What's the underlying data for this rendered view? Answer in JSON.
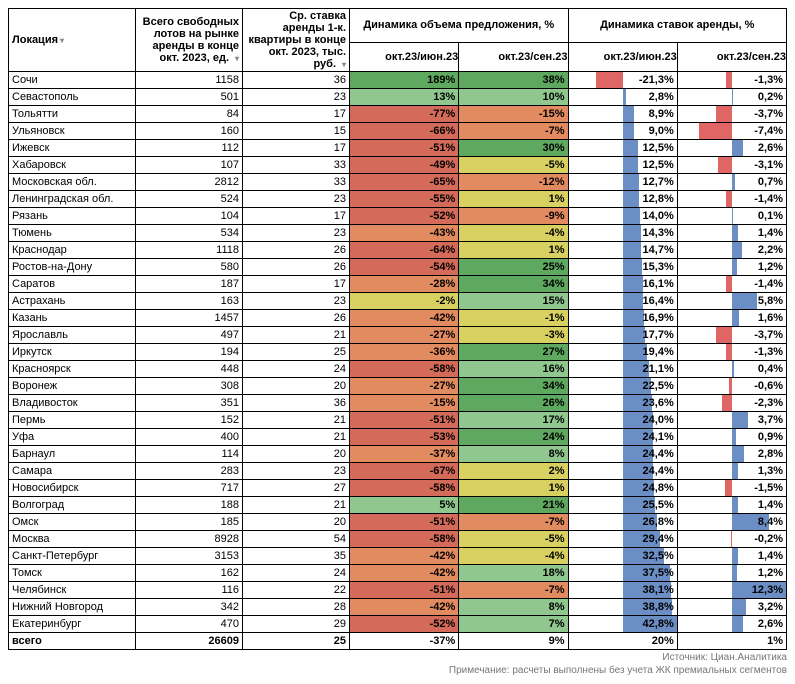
{
  "headers": {
    "location": "Локация",
    "lots": "Всего свободных лотов на рынке аренды в конце окт. 2023, ед.",
    "rate": "Ср. ставка аренды 1-к. квартиры  в конце окт. 2023, тыс. руб.",
    "dyn_supply": "Динамика объема предложения, %",
    "dyn_rate": "Динамика ставок аренды, %",
    "sub_a": "окт.23/июн.23",
    "sub_b": "окт.23/сен.23"
  },
  "colors": {
    "heat_pos_strong": "#5fa85f",
    "heat_pos": "#8fc78f",
    "heat_mid": "#d8d060",
    "heat_neg": "#e28a60",
    "heat_neg_strong": "#d46a5a",
    "bar_pos": "#6b8ec4",
    "bar_neg": "#e06666"
  },
  "style": {
    "font_size": 11,
    "bar_axis_split": 50
  },
  "rows": [
    {
      "loc": "Сочи",
      "lots": 1158,
      "rate": 36,
      "s_jun": 189,
      "s_sep": 38,
      "r_jun": -21.3,
      "r_sep": -1.3
    },
    {
      "loc": "Севастополь",
      "lots": 501,
      "rate": 23,
      "s_jun": 13,
      "s_sep": 10,
      "r_jun": 2.8,
      "r_sep": 0.2
    },
    {
      "loc": "Тольятти",
      "lots": 84,
      "rate": 17,
      "s_jun": -77,
      "s_sep": -15,
      "r_jun": 8.9,
      "r_sep": -3.7
    },
    {
      "loc": "Ульяновск",
      "lots": 160,
      "rate": 15,
      "s_jun": -66,
      "s_sep": -7,
      "r_jun": 9.0,
      "r_sep": -7.4
    },
    {
      "loc": "Ижевск",
      "lots": 112,
      "rate": 17,
      "s_jun": -51,
      "s_sep": 30,
      "r_jun": 12.5,
      "r_sep": 2.6
    },
    {
      "loc": "Хабаровск",
      "lots": 107,
      "rate": 33,
      "s_jun": -49,
      "s_sep": -5,
      "r_jun": 12.5,
      "r_sep": -3.1
    },
    {
      "loc": "Московская обл.",
      "lots": 2812,
      "rate": 33,
      "s_jun": -65,
      "s_sep": -12,
      "r_jun": 12.7,
      "r_sep": 0.7
    },
    {
      "loc": "Ленинградская обл.",
      "lots": 524,
      "rate": 23,
      "s_jun": -55,
      "s_sep": 1,
      "r_jun": 12.8,
      "r_sep": -1.4
    },
    {
      "loc": "Рязань",
      "lots": 104,
      "rate": 17,
      "s_jun": -52,
      "s_sep": -9,
      "r_jun": 14.0,
      "r_sep": 0.1
    },
    {
      "loc": "Тюмень",
      "lots": 534,
      "rate": 23,
      "s_jun": -43,
      "s_sep": -4,
      "r_jun": 14.3,
      "r_sep": 1.4
    },
    {
      "loc": "Краснодар",
      "lots": 1118,
      "rate": 26,
      "s_jun": -64,
      "s_sep": 1,
      "r_jun": 14.7,
      "r_sep": 2.2
    },
    {
      "loc": "Ростов-на-Дону",
      "lots": 580,
      "rate": 26,
      "s_jun": -54,
      "s_sep": 25,
      "r_jun": 15.3,
      "r_sep": 1.2
    },
    {
      "loc": "Саратов",
      "lots": 187,
      "rate": 17,
      "s_jun": -28,
      "s_sep": 34,
      "r_jun": 16.1,
      "r_sep": -1.4
    },
    {
      "loc": "Астрахань",
      "lots": 163,
      "rate": 23,
      "s_jun": -2,
      "s_sep": 15,
      "r_jun": 16.4,
      "r_sep": 5.8
    },
    {
      "loc": "Казань",
      "lots": 1457,
      "rate": 26,
      "s_jun": -42,
      "s_sep": -1,
      "r_jun": 16.9,
      "r_sep": 1.6
    },
    {
      "loc": "Ярославль",
      "lots": 497,
      "rate": 21,
      "s_jun": -27,
      "s_sep": -3,
      "r_jun": 17.7,
      "r_sep": -3.7
    },
    {
      "loc": "Иркутск",
      "lots": 194,
      "rate": 25,
      "s_jun": -36,
      "s_sep": 27,
      "r_jun": 19.4,
      "r_sep": -1.3
    },
    {
      "loc": "Красноярск",
      "lots": 448,
      "rate": 24,
      "s_jun": -58,
      "s_sep": 16,
      "r_jun": 21.1,
      "r_sep": 0.4
    },
    {
      "loc": "Воронеж",
      "lots": 308,
      "rate": 20,
      "s_jun": -27,
      "s_sep": 34,
      "r_jun": 22.5,
      "r_sep": -0.6
    },
    {
      "loc": "Владивосток",
      "lots": 351,
      "rate": 36,
      "s_jun": -15,
      "s_sep": 26,
      "r_jun": 23.6,
      "r_sep": -2.3
    },
    {
      "loc": "Пермь",
      "lots": 152,
      "rate": 21,
      "s_jun": -51,
      "s_sep": 17,
      "r_jun": 24.0,
      "r_sep": 3.7
    },
    {
      "loc": "Уфа",
      "lots": 400,
      "rate": 21,
      "s_jun": -53,
      "s_sep": 24,
      "r_jun": 24.1,
      "r_sep": 0.9
    },
    {
      "loc": "Барнаул",
      "lots": 114,
      "rate": 20,
      "s_jun": -37,
      "s_sep": 8,
      "r_jun": 24.4,
      "r_sep": 2.8
    },
    {
      "loc": "Самара",
      "lots": 283,
      "rate": 23,
      "s_jun": -67,
      "s_sep": 2,
      "r_jun": 24.4,
      "r_sep": 1.3
    },
    {
      "loc": "Новосибирск",
      "lots": 717,
      "rate": 27,
      "s_jun": -58,
      "s_sep": 1,
      "r_jun": 24.8,
      "r_sep": -1.5
    },
    {
      "loc": "Волгоград",
      "lots": 188,
      "rate": 21,
      "s_jun": 5,
      "s_sep": 21,
      "r_jun": 25.5,
      "r_sep": 1.4
    },
    {
      "loc": "Омск",
      "lots": 185,
      "rate": 20,
      "s_jun": -51,
      "s_sep": -7,
      "r_jun": 26.8,
      "r_sep": 8.4
    },
    {
      "loc": "Москва",
      "lots": 8928,
      "rate": 54,
      "s_jun": -58,
      "s_sep": -5,
      "r_jun": 29.4,
      "r_sep": -0.2
    },
    {
      "loc": "Санкт-Петербург",
      "lots": 3153,
      "rate": 35,
      "s_jun": -42,
      "s_sep": -4,
      "r_jun": 32.5,
      "r_sep": 1.4
    },
    {
      "loc": "Томск",
      "lots": 162,
      "rate": 24,
      "s_jun": -42,
      "s_sep": 18,
      "r_jun": 37.5,
      "r_sep": 1.2
    },
    {
      "loc": "Челябинск",
      "lots": 116,
      "rate": 22,
      "s_jun": -51,
      "s_sep": -7,
      "r_jun": 38.1,
      "r_sep": 12.3
    },
    {
      "loc": "Нижний Новгород",
      "lots": 342,
      "rate": 28,
      "s_jun": -42,
      "s_sep": 8,
      "r_jun": 38.8,
      "r_sep": 3.2
    },
    {
      "loc": "Екатеринбург",
      "lots": 470,
      "rate": 29,
      "s_jun": -52,
      "s_sep": 7,
      "r_jun": 42.8,
      "r_sep": 2.6
    }
  ],
  "total": {
    "loc": "всего",
    "lots": 26609,
    "rate": 25,
    "s_jun": -37,
    "s_sep": 9,
    "r_jun": 20,
    "r_sep": 1
  },
  "footnotes": {
    "source": "Источник: Циан.Аналитика",
    "note": "Примечание: расчеты выполнены без учета ЖК премиальных сегментов"
  }
}
